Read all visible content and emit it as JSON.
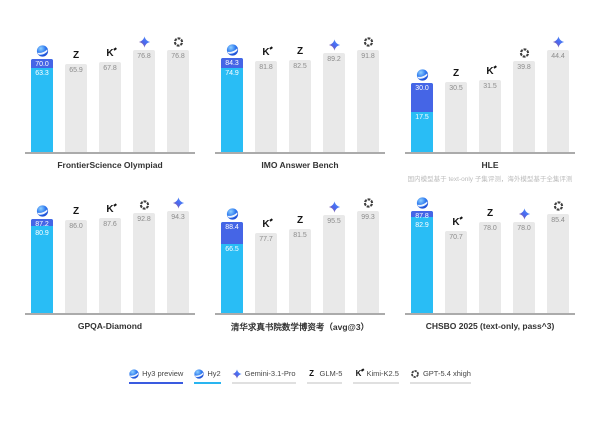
{
  "colors": {
    "hy3_blue": "#4565e6",
    "hy2_cyan": "#29bdf5",
    "bar_gray": "#e9e9e9",
    "value_text_gray": "#8b8b8b",
    "value_text_on_blue": "#ffffff",
    "axis_gray": "#ababab",
    "legend_underline_hy3": "#3a5be0",
    "legend_underline_hy2": "#29b5f0",
    "legend_underline_gray": "#e0e0e0"
  },
  "chart_data": [
    {
      "type": "bar",
      "title": "FrontierScience Olympiad",
      "footnote": "",
      "ylim": [
        0,
        76.8
      ],
      "bars": [
        {
          "label": "Hy3 preview",
          "overlay_label": "Hy2",
          "icon": "hunyuan-icon",
          "value": 70.0,
          "overlay_value": 63.3
        },
        {
          "label": "GLM-5",
          "icon": "glm-icon",
          "value": 65.9
        },
        {
          "label": "Kimi-K2.5",
          "icon": "kimi-icon",
          "value": 67.8
        },
        {
          "label": "Gemini-3.1-Pro",
          "icon": "gemini-icon",
          "value": 76.8
        },
        {
          "label": "GPT-5.4 xhigh",
          "icon": "gpt-icon",
          "value": 76.8
        }
      ]
    },
    {
      "type": "bar",
      "title": "IMO Answer Bench",
      "footnote": "",
      "ylim": [
        0,
        91.8
      ],
      "bars": [
        {
          "label": "Hy3 preview",
          "overlay_label": "Hy2",
          "icon": "hunyuan-icon",
          "value": 84.3,
          "overlay_value": 74.9
        },
        {
          "label": "Kimi-K2.5",
          "icon": "kimi-icon",
          "value": 81.8
        },
        {
          "label": "GLM-5",
          "icon": "glm-icon",
          "value": 82.5
        },
        {
          "label": "Gemini-3.1-Pro",
          "icon": "gemini-icon",
          "value": 89.2
        },
        {
          "label": "GPT-5.4 xhigh",
          "icon": "gpt-icon",
          "value": 91.8
        }
      ]
    },
    {
      "type": "bar",
      "title": "HLE",
      "footnote": "国内模型基于 text-only 子集评测，海外模型基于全集评测",
      "ylim": [
        0,
        44.4
      ],
      "bars": [
        {
          "label": "Hy3 preview",
          "overlay_label": "Hy2",
          "icon": "hunyuan-icon",
          "value": 30.0,
          "overlay_value": 17.5
        },
        {
          "label": "GLM-5",
          "icon": "glm-icon",
          "value": 30.5
        },
        {
          "label": "Kimi-K2.5",
          "icon": "kimi-icon",
          "value": 31.5
        },
        {
          "label": "GPT-5.4 xhigh",
          "icon": "gpt-icon",
          "value": 39.8
        },
        {
          "label": "Gemini-3.1-Pro",
          "icon": "gemini-icon",
          "value": 44.4
        }
      ]
    },
    {
      "type": "bar",
      "title": "GPQA-Diamond",
      "footnote": "",
      "ylim": [
        0,
        94.3
      ],
      "bars": [
        {
          "label": "Hy3 preview",
          "overlay_label": "Hy2",
          "icon": "hunyuan-icon",
          "value": 87.2,
          "overlay_value": 80.9
        },
        {
          "label": "GLM-5",
          "icon": "glm-icon",
          "value": 86.0
        },
        {
          "label": "Kimi-K2.5",
          "icon": "kimi-icon",
          "value": 87.6
        },
        {
          "label": "GPT-5.4 xhigh",
          "icon": "gpt-icon",
          "value": 92.8
        },
        {
          "label": "Gemini-3.1-Pro",
          "icon": "gemini-icon",
          "value": 94.3
        }
      ]
    },
    {
      "type": "bar",
      "title": "清华求真书院数学博资考（avg@3）",
      "footnote": "",
      "ylim": [
        0,
        99.3
      ],
      "bars": [
        {
          "label": "Hy3 preview",
          "overlay_label": "Hy2",
          "icon": "hunyuan-icon",
          "value": 88.4,
          "overlay_value": 66.5
        },
        {
          "label": "Kimi-K2.5",
          "icon": "kimi-icon",
          "value": 77.7
        },
        {
          "label": "GLM-5",
          "icon": "glm-icon",
          "value": 81.5
        },
        {
          "label": "Gemini-3.1-Pro",
          "icon": "gemini-icon",
          "value": 95.5
        },
        {
          "label": "GPT-5.4 xhigh",
          "icon": "gpt-icon",
          "value": 99.3
        }
      ]
    },
    {
      "type": "bar",
      "title": "CHSBO 2025 (text-only, pass^3)",
      "footnote": "",
      "ylim": [
        0,
        87.8
      ],
      "bars": [
        {
          "label": "Hy3 preview",
          "overlay_label": "Hy2",
          "icon": "hunyuan-icon",
          "value": 87.8,
          "overlay_value": 82.9
        },
        {
          "label": "Kimi-K2.5",
          "icon": "kimi-icon",
          "value": 70.7
        },
        {
          "label": "GLM-5",
          "icon": "glm-icon",
          "value": 78.0
        },
        {
          "label": "Gemini-3.1-Pro",
          "icon": "gemini-icon",
          "value": 78.0
        },
        {
          "label": "GPT-5.4 xhigh",
          "icon": "gpt-icon",
          "value": 85.4
        }
      ]
    }
  ],
  "legend": {
    "items": [
      {
        "label": "Hy3 preview",
        "icon": "hunyuan-icon",
        "underline": "#3a5be0"
      },
      {
        "label": "Hy2",
        "icon": "hunyuan-icon",
        "underline": "#29b5f0"
      },
      {
        "label": "Gemini-3.1-Pro",
        "icon": "gemini-icon",
        "underline": "#e0e0e0"
      },
      {
        "label": "GLM-5",
        "icon": "glm-icon",
        "underline": "#e0e0e0"
      },
      {
        "label": "Kimi-K2.5",
        "icon": "kimi-icon",
        "underline": "#e0e0e0"
      },
      {
        "label": "GPT-5.4 xhigh",
        "icon": "gpt-icon",
        "underline": "#e0e0e0"
      }
    ]
  }
}
